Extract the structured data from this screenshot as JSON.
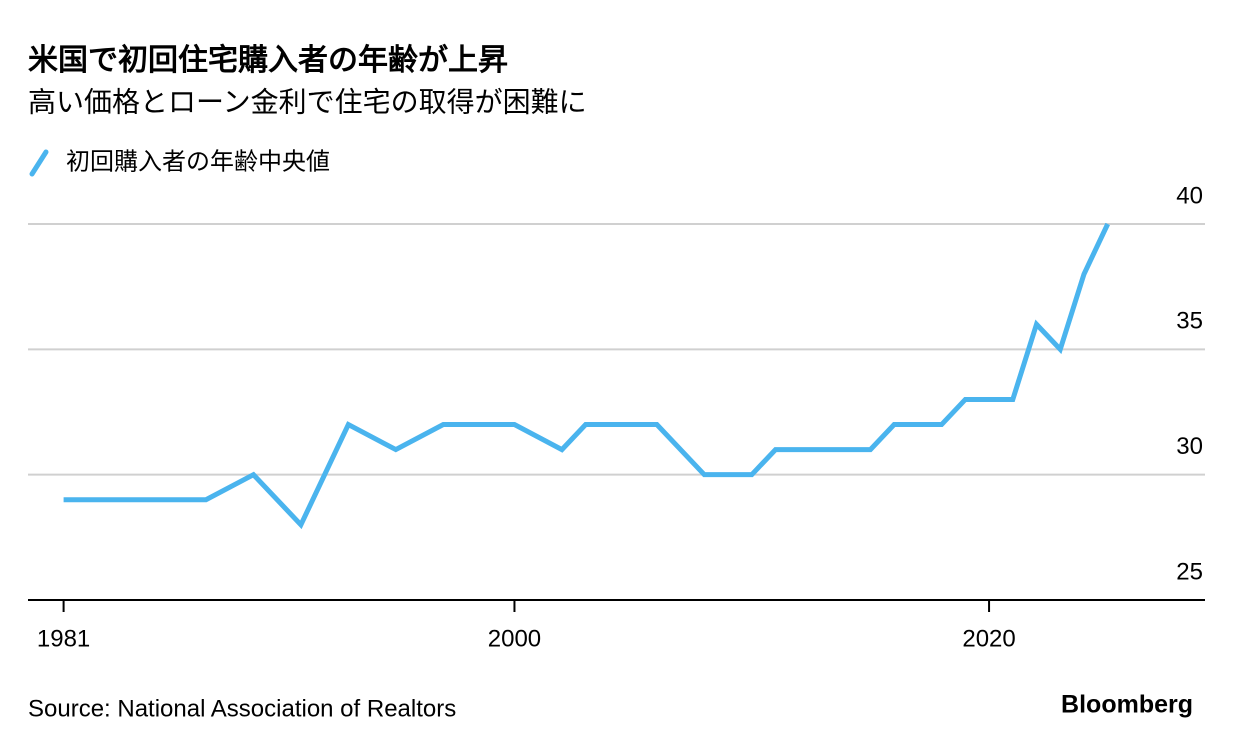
{
  "chart_data": {
    "type": "line",
    "title": "米国で初回住宅購入者の年齢が上昇",
    "subtitle": "高い価格とローン金利で住宅の取得が困難に",
    "source": "Source: National Association of Realtors",
    "brand": "Bloomberg",
    "x": [
      1981,
      1987,
      1989,
      1991,
      1993,
      1995,
      1997,
      2000,
      2002,
      2003,
      2006,
      2008,
      2010,
      2011,
      2015,
      2016,
      2018,
      2019,
      2021,
      2022,
      2023,
      2024,
      2025
    ],
    "series": [
      {
        "name": "初回購入者の年齢中央値",
        "color": "#4ab4ee",
        "values": [
          29,
          29,
          30,
          28,
          32,
          31,
          32,
          32,
          31,
          32,
          32,
          30,
          30,
          31,
          31,
          32,
          32,
          33,
          33,
          36,
          35,
          38,
          40
        ]
      }
    ],
    "xlim": [
      1979.5,
      2029.1
    ],
    "xticks": [
      1981,
      2000,
      2020
    ],
    "ylim": [
      25,
      40
    ],
    "yticks": [
      25,
      30,
      35,
      40
    ],
    "grid": true
  }
}
